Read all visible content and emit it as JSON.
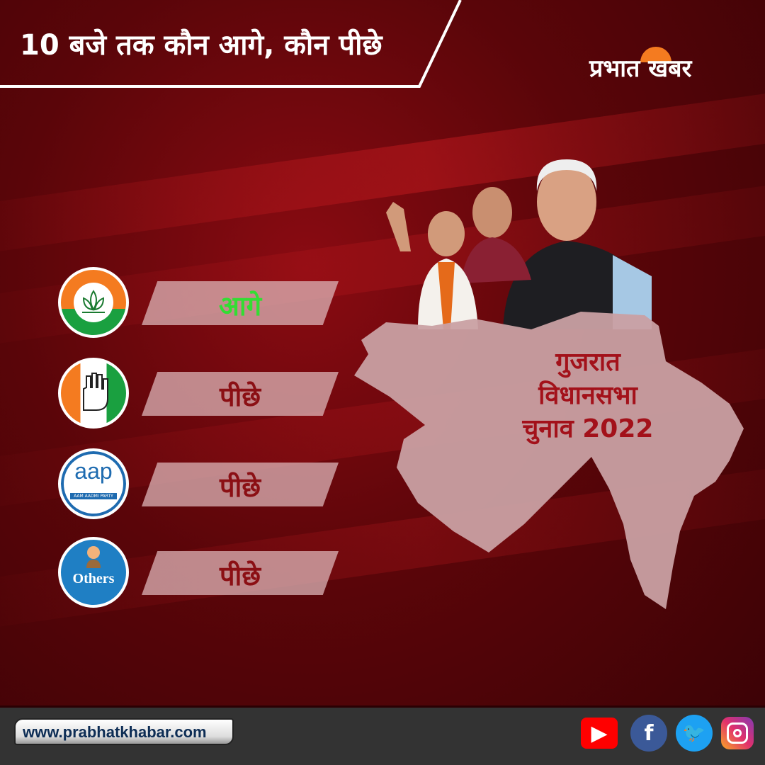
{
  "header": {
    "title": "10 बजे तक कौन आगे, कौन पीछे",
    "logo": "प्रभात खबर"
  },
  "parties": [
    {
      "name": "BJP",
      "status": "आगे",
      "status_color": "#33dd33"
    },
    {
      "name": "Congress",
      "status": "पीछे",
      "status_color": "#8b0f14"
    },
    {
      "name": "AAP",
      "logo_text": "aap",
      "logo_subtext": "AAM AADMI PARTY",
      "status": "पीछे",
      "status_color": "#8b0f14"
    },
    {
      "name": "Others",
      "logo_text": "Others",
      "status": "पीछे",
      "status_color": "#8b0f14"
    }
  ],
  "map": {
    "line1": "गुजरात",
    "line2": "विधानसभा",
    "line3": "चुनाव 2022"
  },
  "footer": {
    "url": "www.prabhatkhabar.com",
    "social": [
      "youtube-icon",
      "facebook-icon",
      "twitter-icon",
      "instagram-icon"
    ]
  },
  "colors": {
    "accent": "#a3111a",
    "footer_bg": "#333333"
  }
}
